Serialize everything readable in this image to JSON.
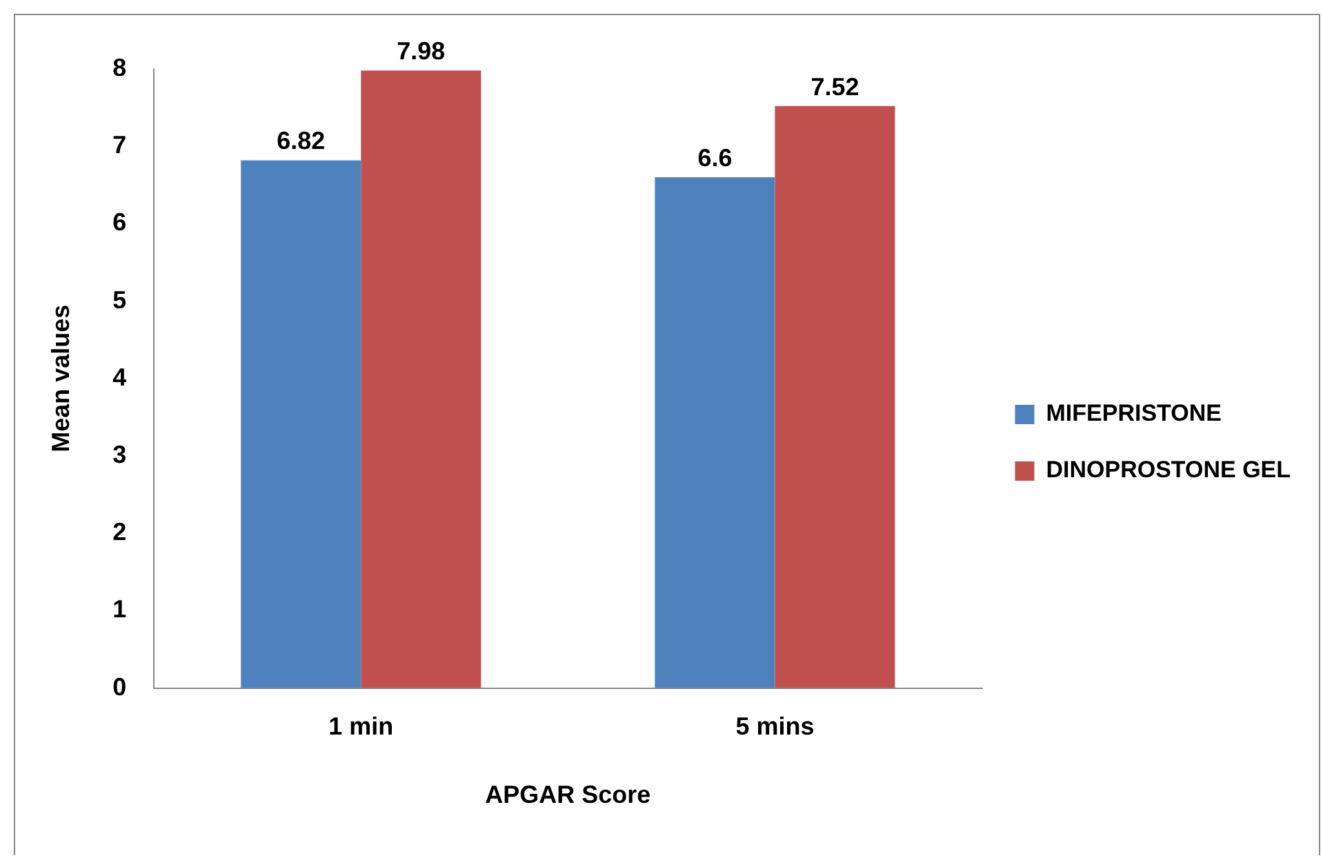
{
  "chart_data": {
    "type": "bar",
    "xlabel": "APGAR Score",
    "ylabel": "Mean values",
    "categories": [
      "1 min",
      "5 mins"
    ],
    "series": [
      {
        "name": "MIFEPRISTONE",
        "color": "#4f81bd",
        "values": [
          6.82,
          6.6
        ]
      },
      {
        "name": "DINOPROSTONE GEL",
        "color": "#c0504d",
        "values": [
          7.98,
          7.52
        ]
      }
    ],
    "ylim": [
      0,
      8
    ],
    "yticks": [
      0,
      1,
      2,
      3,
      4,
      5,
      6,
      7,
      8
    ],
    "grid": false,
    "legend": "right",
    "data_labels": true
  }
}
